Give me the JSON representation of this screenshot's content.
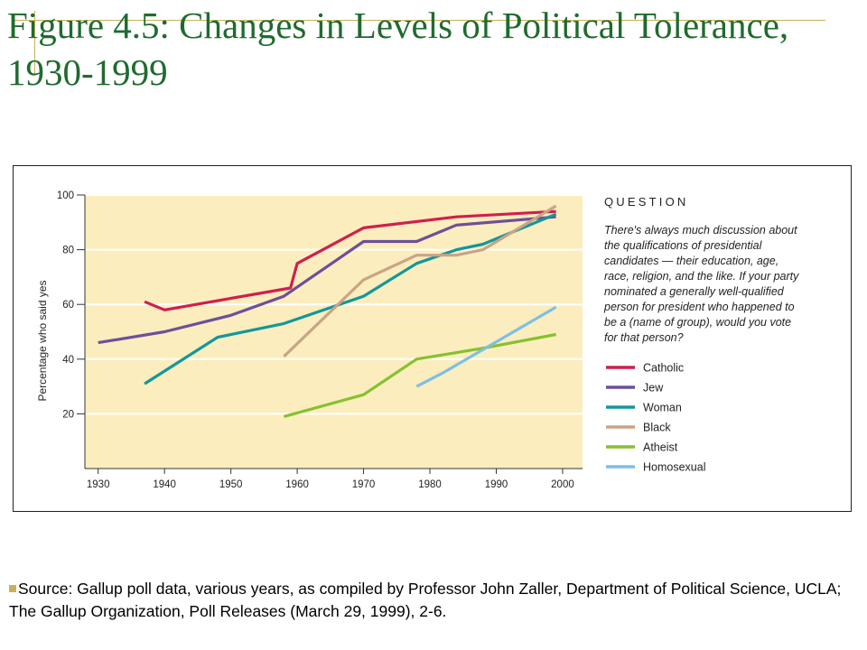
{
  "slide": {
    "title": "Figure 4.5: Changes in Levels of Political Tolerance, 1930-1999",
    "source": "Source: Gallup poll data, various years, as compiled by Professor John Zaller, Department of Political Science, UCLA; The Gallup Organization, Poll Releases (March 29, 1999), 2-6."
  },
  "question": {
    "heading": "QUESTION",
    "lines": [
      "There's always much discussion about",
      "the qualifications of presidential",
      "candidates — their education, age,",
      "race, religion, and the like. If your party",
      "nominated a generally well-qualified",
      "person for president who happened to",
      "be a (name of group), would you vote",
      "for that person?"
    ]
  },
  "chart_data": {
    "type": "line",
    "title": "",
    "xlabel": "",
    "ylabel": "Percentage who said yes",
    "xlim": [
      1928,
      2003
    ],
    "ylim": [
      0,
      100
    ],
    "x_ticks": [
      1930,
      1940,
      1950,
      1960,
      1970,
      1980,
      1990,
      2000
    ],
    "y_ticks": [
      20,
      40,
      60,
      80,
      100
    ],
    "grid": "horizontal",
    "legend_position": "right",
    "plot_background": "#fbedbd",
    "series": [
      {
        "name": "Catholic",
        "color": "#cf1f4f",
        "points": [
          [
            1937,
            61
          ],
          [
            1940,
            58
          ],
          [
            1959,
            66
          ],
          [
            1960,
            75
          ],
          [
            1970,
            88
          ],
          [
            1984,
            92
          ],
          [
            1999,
            94
          ]
        ]
      },
      {
        "name": "Jew",
        "color": "#6d4f9b",
        "points": [
          [
            1930,
            46
          ],
          [
            1940,
            50
          ],
          [
            1950,
            56
          ],
          [
            1958,
            63
          ],
          [
            1970,
            83
          ],
          [
            1978,
            83
          ],
          [
            1984,
            89
          ],
          [
            1999,
            92
          ]
        ]
      },
      {
        "name": "Woman",
        "color": "#12979b",
        "points": [
          [
            1937,
            31
          ],
          [
            1948,
            48
          ],
          [
            1958,
            53
          ],
          [
            1970,
            63
          ],
          [
            1978,
            75
          ],
          [
            1984,
            80
          ],
          [
            1988,
            82
          ],
          [
            1999,
            93
          ]
        ]
      },
      {
        "name": "Black",
        "color": "#c9a486",
        "points": [
          [
            1958,
            41
          ],
          [
            1970,
            69
          ],
          [
            1978,
            78
          ],
          [
            1984,
            78
          ],
          [
            1988,
            80
          ],
          [
            1999,
            96
          ]
        ]
      },
      {
        "name": "Atheist",
        "color": "#86c12e",
        "points": [
          [
            1958,
            19
          ],
          [
            1970,
            27
          ],
          [
            1978,
            40
          ],
          [
            1988,
            44
          ],
          [
            1999,
            49
          ]
        ]
      },
      {
        "name": "Homosexual",
        "color": "#7ebfe2",
        "points": [
          [
            1978,
            30
          ],
          [
            1982,
            35
          ],
          [
            1999,
            59
          ]
        ]
      }
    ]
  }
}
